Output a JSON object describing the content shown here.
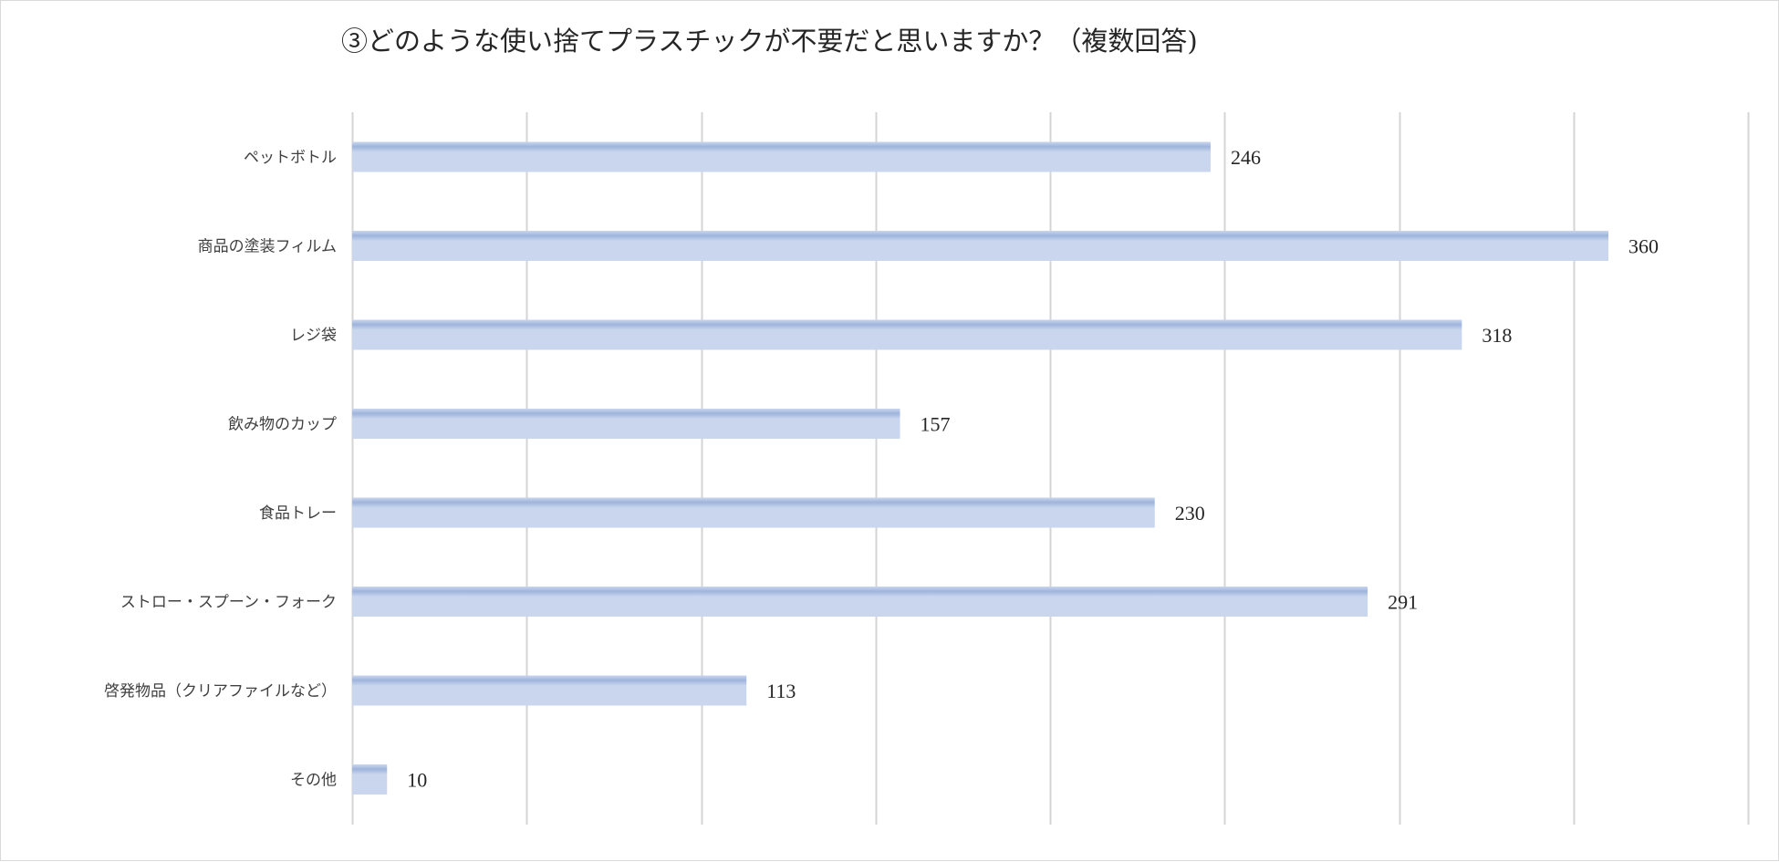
{
  "chart_data": {
    "type": "bar",
    "orientation": "horizontal",
    "title": "③どのような使い捨てプラスチックが不要だと思いますか？（複数回答)",
    "categories": [
      "ペットボトル",
      "商品の塗装フィルム",
      "レジ袋",
      "飲み物のカップ",
      "食品トレー",
      "ストロー・スプーン・フォーク",
      "啓発物品（クリアファイルなど）",
      "その他"
    ],
    "values": [
      246,
      360,
      318,
      157,
      230,
      291,
      113,
      10
    ],
    "xlim": [
      0,
      400
    ],
    "grid": true,
    "legend": "none",
    "colors": {
      "bar": "#c9d6ee",
      "bar_highlight": "#9fb4dc"
    }
  }
}
